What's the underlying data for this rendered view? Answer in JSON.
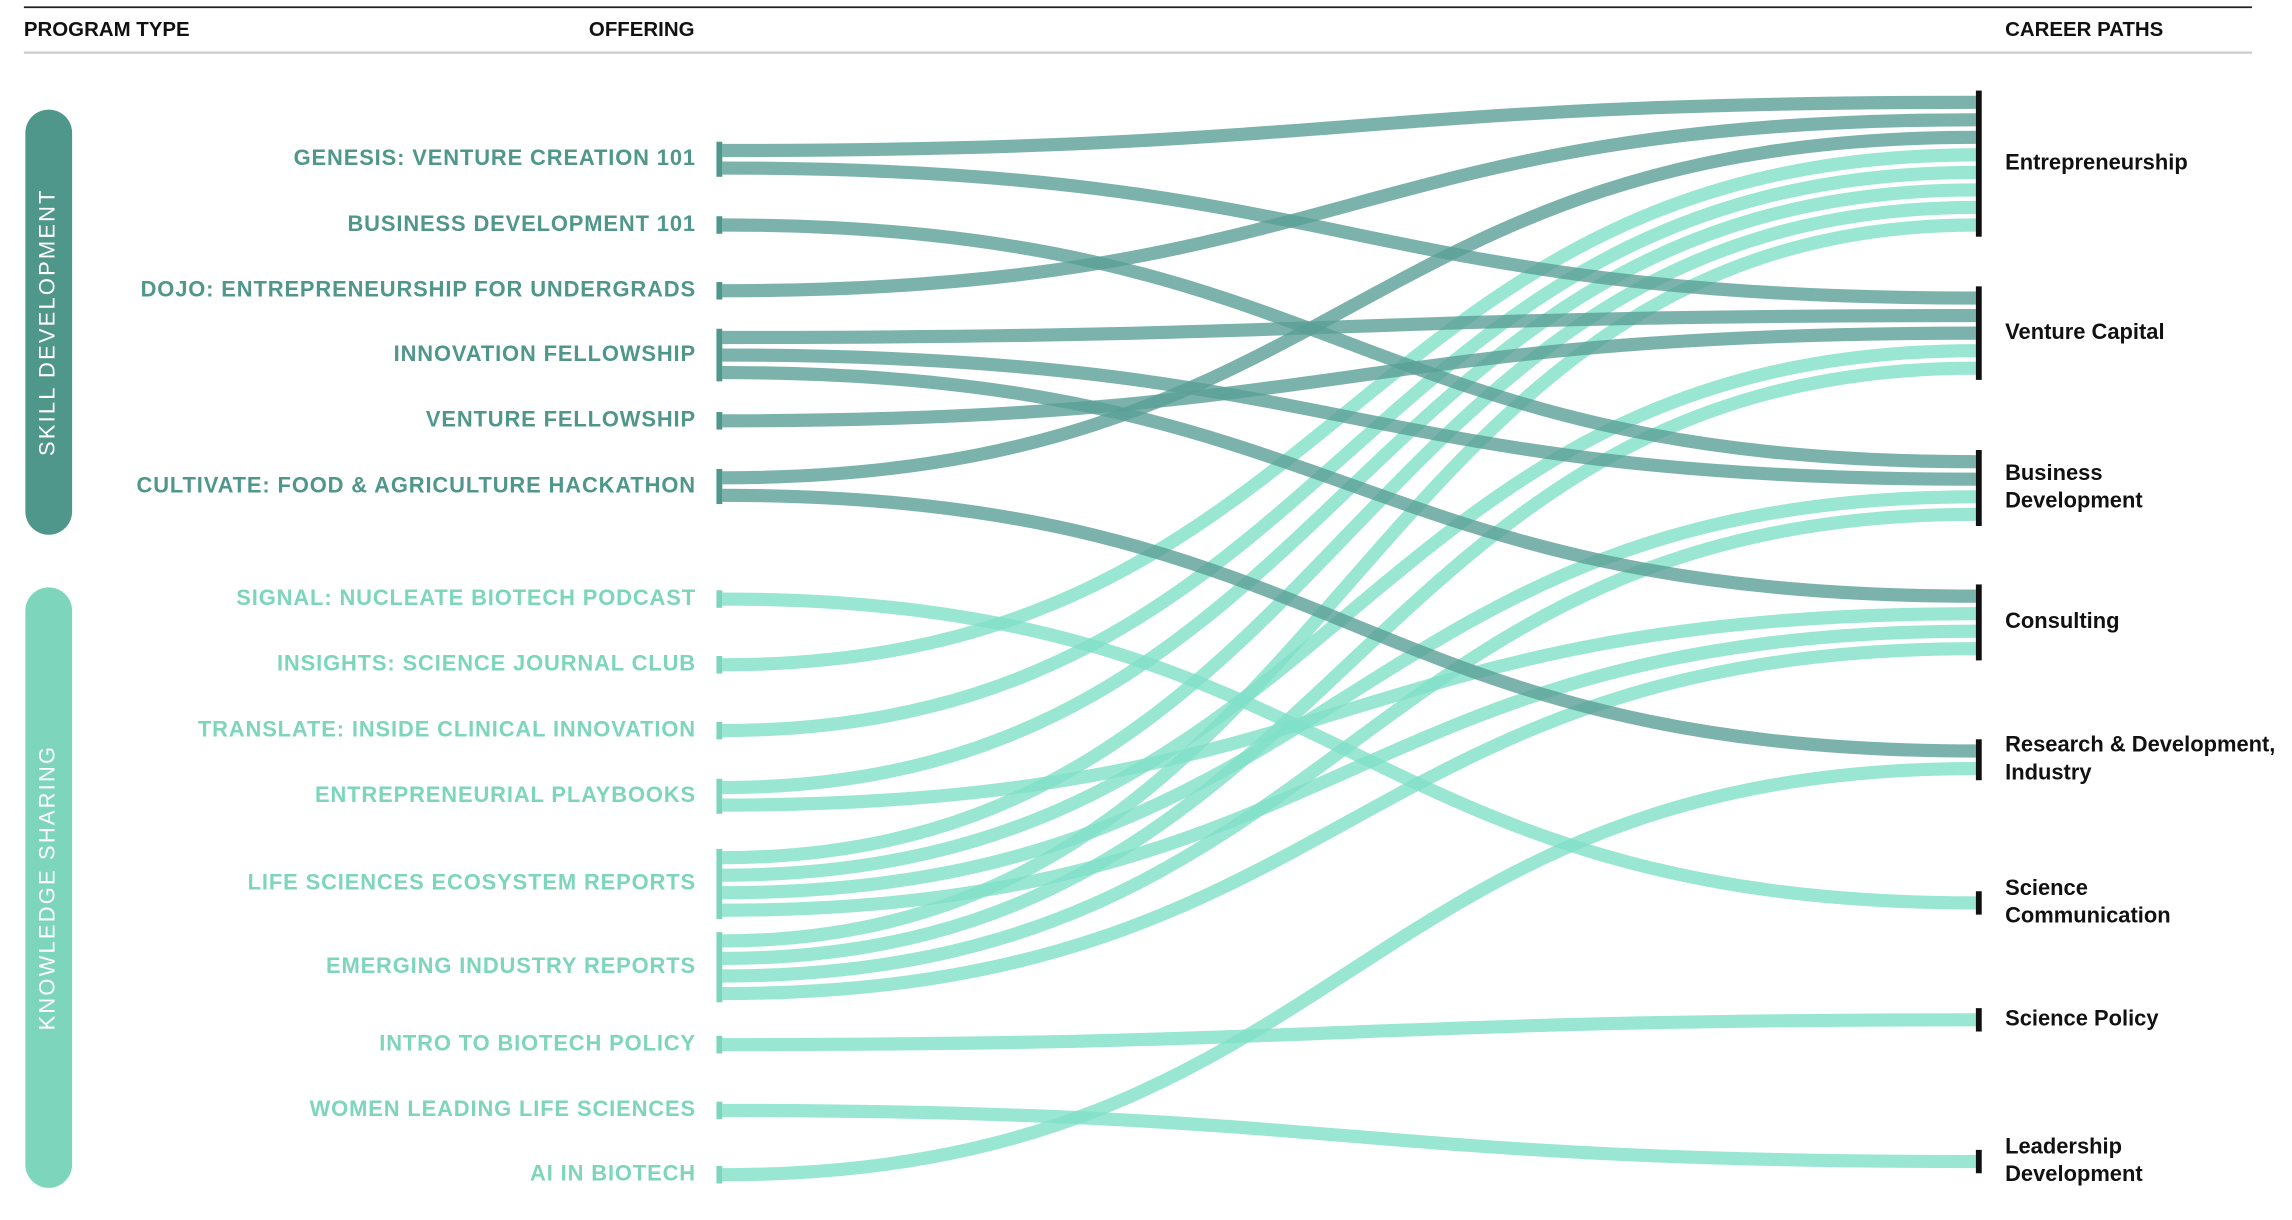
{
  "header": {
    "program_type": "PROGRAM TYPE",
    "offering": "OFFERING",
    "career_paths": "CAREER PATHS"
  },
  "career_paths": [
    {
      "label": [
        "Entrepreneurship"
      ]
    },
    {
      "label": [
        "Venture Capital"
      ]
    },
    {
      "label": [
        "Business",
        "Development"
      ]
    },
    {
      "label": [
        "Consulting"
      ]
    },
    {
      "label": [
        "Research & Development,",
        "Industry"
      ]
    },
    {
      "label": [
        "Science",
        "Communication"
      ]
    },
    {
      "label": [
        "Science Policy"
      ]
    },
    {
      "label": [
        "Leadership",
        "Development"
      ]
    }
  ],
  "program_types": [
    {
      "name": "SKILL DEVELOPMENT",
      "color": "#4f968b",
      "link_color": "#5a9f96",
      "offerings": [
        {
          "name": "GENESIS: VENTURE CREATION 101",
          "paths": [
            0,
            1
          ]
        },
        {
          "name": "BUSINESS DEVELOPMENT 101",
          "paths": [
            2
          ]
        },
        {
          "name": "DOJO: ENTREPRENEURSHIP FOR UNDERGRADS",
          "paths": [
            0
          ]
        },
        {
          "name": "INNOVATION FELLOWSHIP",
          "paths": [
            1,
            2,
            3
          ]
        },
        {
          "name": "VENTURE FELLOWSHIP",
          "paths": [
            1
          ]
        },
        {
          "name": "CULTIVATE: FOOD & AGRICULTURE HACKATHON",
          "paths": [
            0,
            4
          ]
        }
      ]
    },
    {
      "name": "KNOWLEDGE SHARING",
      "color": "#7dd6bc",
      "link_color": "#80e0c8",
      "offerings": [
        {
          "name": "SIGNAL: NUCLEATE BIOTECH PODCAST",
          "paths": [
            5
          ]
        },
        {
          "name": "INSIGHTS: SCIENCE JOURNAL CLUB",
          "paths": [
            0
          ]
        },
        {
          "name": "TRANSLATE: INSIDE CLINICAL INNOVATION",
          "paths": [
            0
          ]
        },
        {
          "name": "ENTREPRENEURIAL PLAYBOOKS",
          "paths": [
            0,
            3
          ]
        },
        {
          "name": "LIFE SCIENCES ECOSYSTEM REPORTS",
          "paths": [
            0,
            1,
            2,
            3
          ]
        },
        {
          "name": "EMERGING INDUSTRY REPORTS",
          "paths": [
            0,
            1,
            2,
            3
          ]
        },
        {
          "name": "INTRO TO BIOTECH POLICY",
          "paths": [
            6
          ]
        },
        {
          "name": "WOMEN LEADING LIFE SCIENCES",
          "paths": [
            7
          ]
        },
        {
          "name": "AI IN BIOTECH",
          "paths": [
            4
          ]
        }
      ]
    }
  ]
}
